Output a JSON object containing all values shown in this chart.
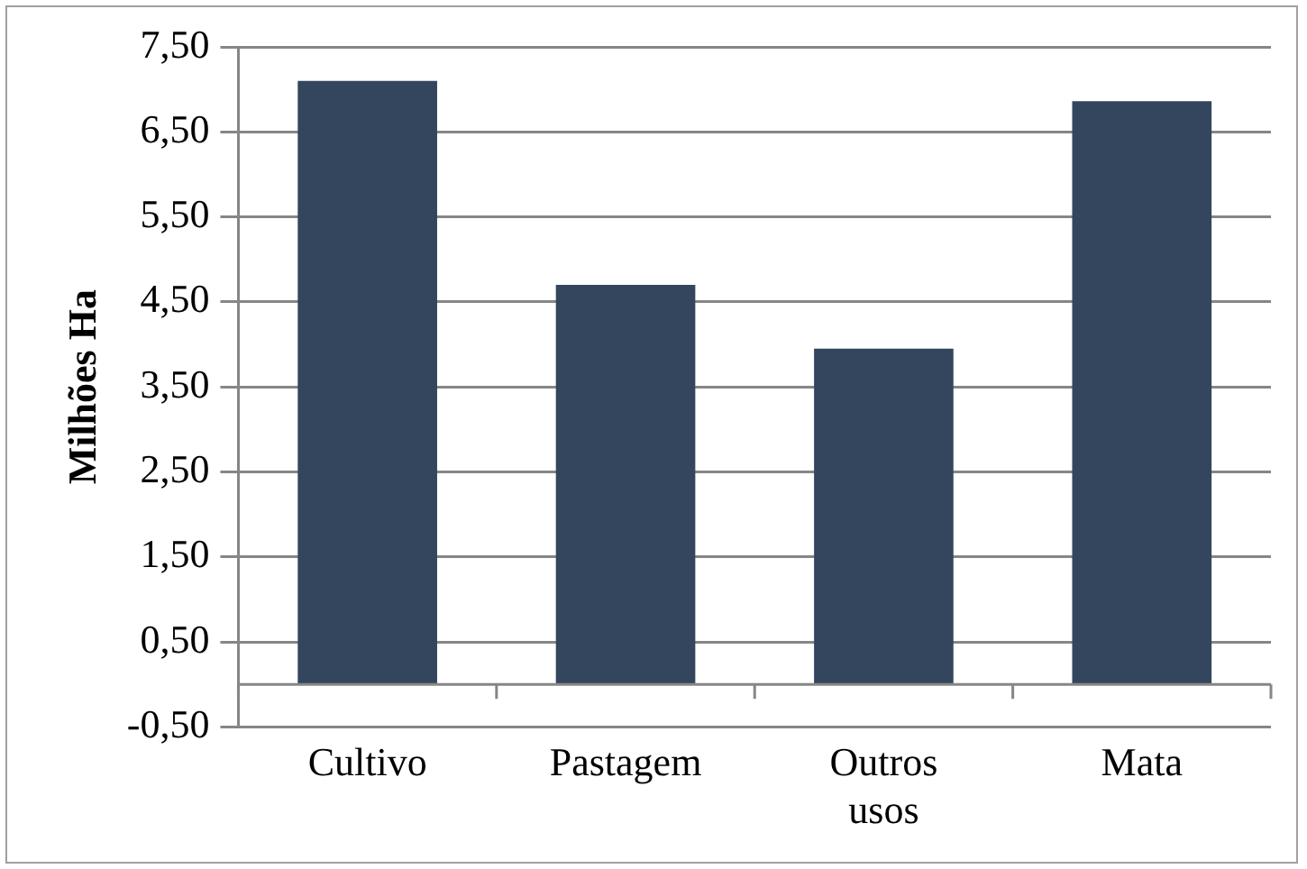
{
  "chart_data": {
    "type": "bar",
    "ylabel": "Milhões Ha",
    "categories": [
      "Cultivo",
      "Pastagem",
      "Outros usos",
      "Mata"
    ],
    "values": [
      7.1,
      4.7,
      3.95,
      6.86
    ],
    "color": "#34465e",
    "ylim": [
      -0.5,
      7.5
    ],
    "yticks": [
      {
        "value": -0.5,
        "label": "-0,50"
      },
      {
        "value": 0.5,
        "label": "0,50"
      },
      {
        "value": 1.5,
        "label": "1,50"
      },
      {
        "value": 2.5,
        "label": "2,50"
      },
      {
        "value": 3.5,
        "label": "3,50"
      },
      {
        "value": 4.5,
        "label": "4,50"
      },
      {
        "value": 5.5,
        "label": "5,50"
      },
      {
        "value": 6.5,
        "label": "6,50"
      },
      {
        "value": 7.5,
        "label": "7,50"
      }
    ],
    "grid": "y",
    "legend": false
  }
}
